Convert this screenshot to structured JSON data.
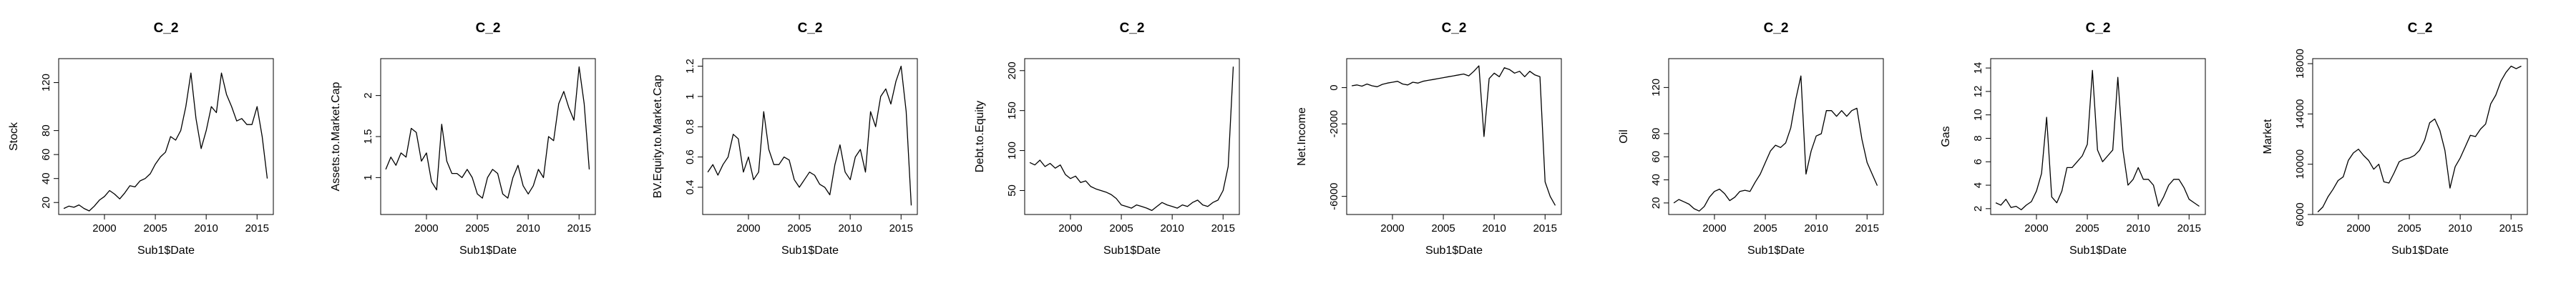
{
  "chart_data": [
    {
      "type": "line",
      "title": "C_2",
      "xlabel": "Sub1$Date",
      "ylabel": "Stock",
      "xlim": [
        1995.5,
        2016.6
      ],
      "ylim": [
        10,
        140
      ],
      "xticks": [
        2000,
        2005,
        2010,
        2015
      ],
      "yticks": [
        20,
        40,
        60,
        80,
        120
      ],
      "x": [
        1996,
        1996.5,
        1997,
        1997.5,
        1998,
        1998.5,
        1999,
        1999.5,
        2000,
        2000.5,
        2001,
        2001.5,
        2002,
        2002.5,
        2003,
        2003.5,
        2004,
        2004.5,
        2005,
        2005.5,
        2006,
        2006.5,
        2007,
        2007.5,
        2008,
        2008.5,
        2009,
        2009.5,
        2010,
        2010.5,
        2011,
        2011.5,
        2012,
        2012.5,
        2013,
        2013.5,
        2014,
        2014.5,
        2015,
        2015.5,
        2016
      ],
      "y": [
        15,
        17,
        16,
        18,
        15,
        13,
        17,
        22,
        25,
        30,
        27,
        23,
        28,
        34,
        33,
        38,
        40,
        44,
        52,
        58,
        62,
        75,
        72,
        80,
        100,
        128,
        90,
        65,
        80,
        100,
        95,
        128,
        110,
        100,
        88,
        90,
        85,
        85,
        100,
        75,
        40
      ]
    },
    {
      "type": "line",
      "title": "C_2",
      "xlabel": "Sub1$Date",
      "ylabel": "Assets.to.Market.Cap",
      "xlim": [
        1995.5,
        2016.6
      ],
      "ylim": [
        0.55,
        2.45
      ],
      "xticks": [
        2000,
        2005,
        2010,
        2015
      ],
      "yticks": [
        1.0,
        1.5,
        2.0
      ],
      "x": [
        1996,
        1996.5,
        1997,
        1997.5,
        1998,
        1998.5,
        1999,
        1999.5,
        2000,
        2000.5,
        2001,
        2001.5,
        2002,
        2002.5,
        2003,
        2003.5,
        2004,
        2004.5,
        2005,
        2005.5,
        2006,
        2006.5,
        2007,
        2007.5,
        2008,
        2008.5,
        2009,
        2009.5,
        2010,
        2010.5,
        2011,
        2011.5,
        2012,
        2012.5,
        2013,
        2013.5,
        2014,
        2014.5,
        2015,
        2015.5,
        2016
      ],
      "y": [
        1.1,
        1.25,
        1.15,
        1.3,
        1.25,
        1.6,
        1.55,
        1.2,
        1.3,
        0.95,
        0.85,
        1.65,
        1.2,
        1.05,
        1.05,
        1.0,
        1.1,
        1.0,
        0.8,
        0.75,
        1.0,
        1.1,
        1.05,
        0.8,
        0.75,
        1.0,
        1.15,
        0.9,
        0.8,
        0.9,
        1.1,
        1.0,
        1.5,
        1.45,
        1.9,
        2.05,
        1.85,
        1.7,
        2.35,
        1.9,
        1.1
      ]
    },
    {
      "type": "line",
      "title": "C_2",
      "xlabel": "Sub1$Date",
      "ylabel": "BV.Equity.to.Market.Cap",
      "xlim": [
        1995.5,
        2016.6
      ],
      "ylim": [
        0.22,
        1.25
      ],
      "xticks": [
        2000,
        2005,
        2010,
        2015
      ],
      "yticks": [
        0.4,
        0.6,
        0.8,
        1.0,
        1.2
      ],
      "x": [
        1996,
        1996.5,
        1997,
        1997.5,
        1998,
        1998.5,
        1999,
        1999.5,
        2000,
        2000.5,
        2001,
        2001.5,
        2002,
        2002.5,
        2003,
        2003.5,
        2004,
        2004.5,
        2005,
        2005.5,
        2006,
        2006.5,
        2007,
        2007.5,
        2008,
        2008.5,
        2009,
        2009.5,
        2010,
        2010.5,
        2011,
        2011.5,
        2012,
        2012.5,
        2013,
        2013.5,
        2014,
        2014.5,
        2015,
        2015.5,
        2016
      ],
      "y": [
        0.5,
        0.55,
        0.48,
        0.55,
        0.6,
        0.75,
        0.72,
        0.5,
        0.6,
        0.45,
        0.5,
        0.9,
        0.65,
        0.55,
        0.55,
        0.6,
        0.58,
        0.45,
        0.4,
        0.45,
        0.5,
        0.48,
        0.42,
        0.4,
        0.35,
        0.55,
        0.68,
        0.5,
        0.45,
        0.6,
        0.65,
        0.5,
        0.9,
        0.8,
        1.0,
        1.05,
        0.95,
        1.1,
        1.2,
        0.9,
        0.28
      ]
    },
    {
      "type": "line",
      "title": "C_2",
      "xlabel": "Sub1$Date",
      "ylabel": "Debt.to.Equity",
      "xlim": [
        1995.5,
        2016.6
      ],
      "ylim": [
        20,
        215
      ],
      "xticks": [
        2000,
        2005,
        2010,
        2015
      ],
      "yticks": [
        50,
        100,
        150,
        200
      ],
      "x": [
        1996,
        1996.5,
        1997,
        1997.5,
        1998,
        1998.5,
        1999,
        1999.5,
        2000,
        2000.5,
        2001,
        2001.5,
        2002,
        2002.5,
        2003,
        2003.5,
        2004,
        2004.5,
        2005,
        2005.5,
        2006,
        2006.5,
        2007,
        2007.5,
        2008,
        2008.5,
        2009,
        2009.5,
        2010,
        2010.5,
        2011,
        2011.5,
        2012,
        2012.5,
        2013,
        2013.5,
        2014,
        2014.5,
        2015,
        2015.5,
        2016
      ],
      "y": [
        85,
        82,
        88,
        80,
        84,
        78,
        82,
        70,
        65,
        68,
        60,
        62,
        55,
        52,
        50,
        48,
        45,
        40,
        32,
        30,
        28,
        32,
        30,
        28,
        25,
        30,
        35,
        32,
        30,
        28,
        32,
        30,
        35,
        38,
        32,
        30,
        35,
        38,
        50,
        80,
        205
      ]
    },
    {
      "type": "line",
      "title": "C_2",
      "xlabel": "Sub1$Date",
      "ylabel": "Net.Income",
      "xlim": [
        1995.5,
        2016.6
      ],
      "ylim": [
        -7000,
        1600
      ],
      "xticks": [
        2000,
        2005,
        2010,
        2015
      ],
      "yticks": [
        0,
        -2000,
        -6000
      ],
      "x": [
        1996,
        1996.5,
        1997,
        1997.5,
        1998,
        1998.5,
        1999,
        1999.5,
        2000,
        2000.5,
        2001,
        2001.5,
        2002,
        2002.5,
        2003,
        2003.5,
        2004,
        2004.5,
        2005,
        2005.5,
        2006,
        2006.5,
        2007,
        2007.5,
        2008,
        2008.5,
        2009,
        2009.5,
        2010,
        2010.5,
        2011,
        2011.5,
        2012,
        2012.5,
        2013,
        2013.5,
        2014,
        2014.5,
        2015,
        2015.5,
        2016
      ],
      "y": [
        100,
        150,
        80,
        200,
        100,
        50,
        180,
        250,
        300,
        350,
        200,
        150,
        300,
        250,
        350,
        400,
        450,
        500,
        550,
        600,
        650,
        700,
        750,
        650,
        900,
        1200,
        -2700,
        500,
        800,
        600,
        1100,
        1000,
        800,
        900,
        600,
        900,
        700,
        600,
        -5200,
        -6000,
        -6500
      ]
    },
    {
      "type": "line",
      "title": "C_2",
      "xlabel": "Sub1$Date",
      "ylabel": "Oil",
      "xlim": [
        1995.5,
        2016.6
      ],
      "ylim": [
        10,
        145
      ],
      "xticks": [
        2000,
        2005,
        2010,
        2015
      ],
      "yticks": [
        20,
        40,
        60,
        80,
        120
      ],
      "x": [
        1996,
        1996.5,
        1997,
        1997.5,
        1998,
        1998.5,
        1999,
        1999.5,
        2000,
        2000.5,
        2001,
        2001.5,
        2002,
        2002.5,
        2003,
        2003.5,
        2004,
        2004.5,
        2005,
        2005.5,
        2006,
        2006.5,
        2007,
        2007.5,
        2008,
        2008.5,
        2009,
        2009.5,
        2010,
        2010.5,
        2011,
        2011.5,
        2012,
        2012.5,
        2013,
        2013.5,
        2014,
        2014.5,
        2015,
        2015.5,
        2016
      ],
      "y": [
        20,
        23,
        21,
        19,
        15,
        13,
        17,
        25,
        30,
        32,
        28,
        22,
        25,
        30,
        31,
        30,
        38,
        45,
        55,
        65,
        70,
        68,
        72,
        85,
        110,
        130,
        45,
        65,
        78,
        80,
        100,
        100,
        95,
        100,
        95,
        100,
        102,
        75,
        55,
        45,
        35
      ]
    },
    {
      "type": "line",
      "title": "C_2",
      "xlabel": "Sub1$Date",
      "ylabel": "Gas",
      "xlim": [
        1995.5,
        2016.6
      ],
      "ylim": [
        1.5,
        14.8
      ],
      "xticks": [
        2000,
        2005,
        2010,
        2015
      ],
      "yticks": [
        2,
        4,
        6,
        8,
        10,
        12,
        14
      ],
      "x": [
        1996,
        1996.5,
        1997,
        1997.5,
        1998,
        1998.5,
        1999,
        1999.5,
        2000,
        2000.5,
        2001,
        2001.5,
        2002,
        2002.5,
        2003,
        2003.5,
        2004,
        2004.5,
        2005,
        2005.5,
        2006,
        2006.5,
        2007,
        2007.5,
        2008,
        2008.5,
        2009,
        2009.5,
        2010,
        2010.5,
        2011,
        2011.5,
        2012,
        2012.5,
        2013,
        2013.5,
        2014,
        2014.5,
        2015,
        2015.5,
        2016
      ],
      "y": [
        2.5,
        2.3,
        2.8,
        2.1,
        2.2,
        1.9,
        2.3,
        2.6,
        3.5,
        5,
        9.8,
        3,
        2.5,
        3.5,
        5.5,
        5.5,
        6,
        6.5,
        7.5,
        13.8,
        7,
        6,
        6.5,
        7,
        13.2,
        7,
        4,
        4.5,
        5.5,
        4.5,
        4.5,
        4,
        2.2,
        3,
        4,
        4.5,
        4.5,
        3.8,
        2.8,
        2.5,
        2.2
      ]
    },
    {
      "type": "line",
      "title": "C_2",
      "xlabel": "Sub1$Date",
      "ylabel": "Market",
      "xlim": [
        1995.5,
        2016.6
      ],
      "ylim": [
        6000,
        18400
      ],
      "xticks": [
        2000,
        2005,
        2010,
        2015
      ],
      "yticks": [
        6000,
        10000,
        14000,
        18000
      ],
      "x": [
        1996,
        1996.5,
        1997,
        1997.5,
        1998,
        1998.5,
        1999,
        1999.5,
        2000,
        2000.5,
        2001,
        2001.5,
        2002,
        2002.5,
        2003,
        2003.5,
        2004,
        2004.5,
        2005,
        2005.5,
        2006,
        2006.5,
        2007,
        2007.5,
        2008,
        2008.5,
        2009,
        2009.5,
        2010,
        2010.5,
        2011,
        2011.5,
        2012,
        2012.5,
        2013,
        2013.5,
        2014,
        2014.5,
        2015,
        2015.5,
        2016
      ],
      "y": [
        6200,
        6600,
        7400,
        8000,
        8700,
        9000,
        10300,
        10900,
        11200,
        10700,
        10300,
        9600,
        10000,
        8600,
        8500,
        9300,
        10200,
        10400,
        10500,
        10700,
        11100,
        11900,
        13300,
        13600,
        12700,
        11100,
        8100,
        9800,
        10500,
        11400,
        12300,
        12200,
        12800,
        13200,
        14800,
        15500,
        16600,
        17300,
        17800,
        17600,
        17800
      ]
    }
  ]
}
